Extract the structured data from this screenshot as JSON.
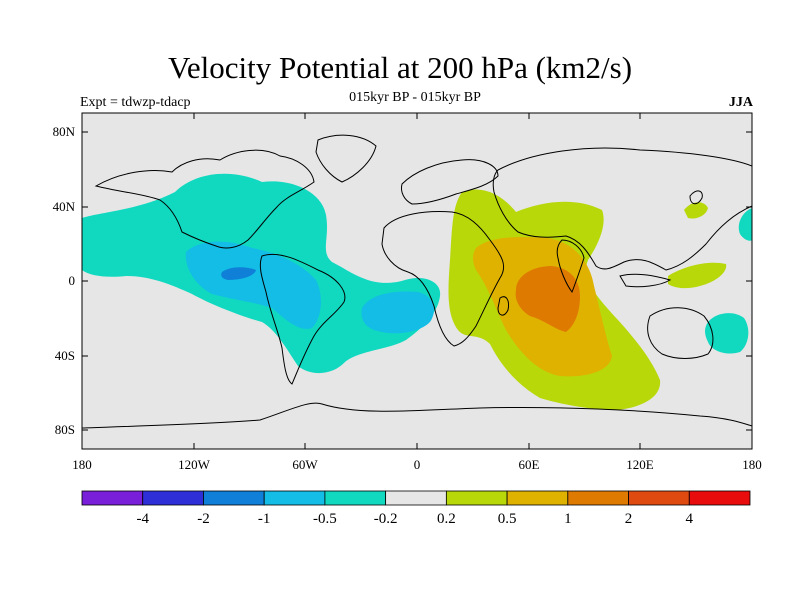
{
  "header": {
    "title": "Velocity Potential at 200 hPa (km2/s)",
    "subtitle": "015kyr BP - 015kyr BP",
    "left_label": "Expt = tdwzp-tdacp",
    "right_label": "JJA"
  },
  "axes": {
    "lat_ticks": [
      "80N",
      "40N",
      "0",
      "40S",
      "80S"
    ],
    "lon_ticks": [
      "180",
      "120W",
      "60W",
      "0",
      "60E",
      "120E",
      "180"
    ]
  },
  "colorbar": {
    "colors": [
      "#7a1fd9",
      "#2f2fd8",
      "#0f7fd8",
      "#13bde6",
      "#10d9c0",
      "#e6e6e6",
      "#b8d80a",
      "#dfb200",
      "#df7a00",
      "#df4a10",
      "#e80c0c"
    ],
    "labels": [
      "-4",
      "-2",
      "-1",
      "-0.5",
      "-0.2",
      "0.2",
      "0.5",
      "1",
      "2",
      "4"
    ]
  },
  "map": {
    "background_color": "#e6e6e6",
    "cyan_color": "#10d9c0",
    "blue_color": "#13bde6",
    "deep_blue_color": "#0f7fd8",
    "yellowgreen_color": "#b8d80a",
    "gold_color": "#dfb200",
    "orange_color": "#df7a00"
  }
}
